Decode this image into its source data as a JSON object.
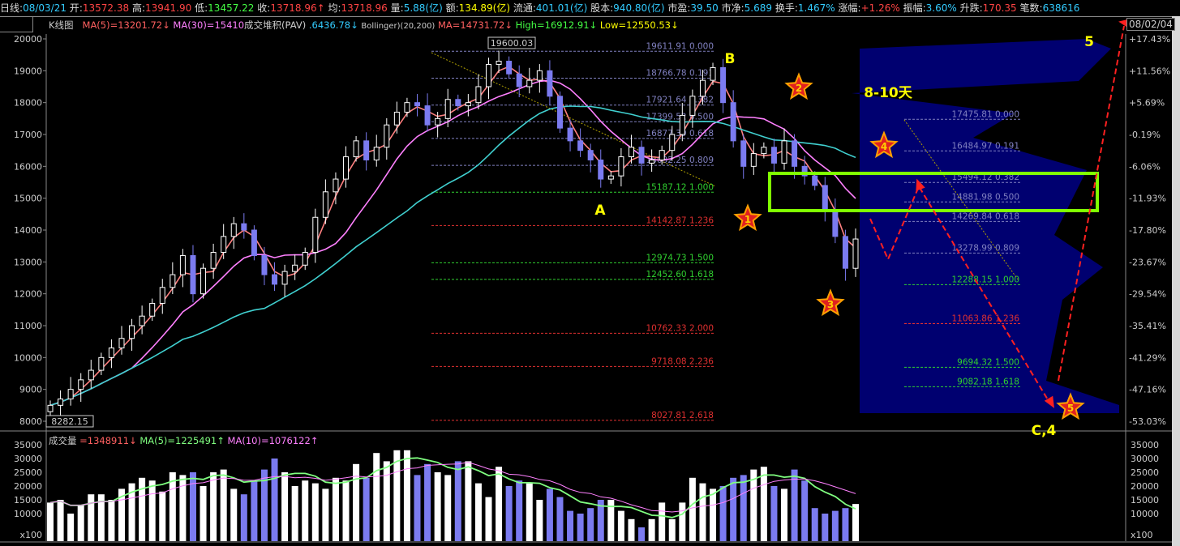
{
  "header": {
    "period_label": "日线",
    "date": "08/03/21",
    "open_label": "开",
    "open": "13572.38",
    "high_label": "高",
    "high": "13941.90",
    "low_label": "低",
    "low": "13457.22",
    "close_label": "收",
    "close": "13718.96↑",
    "avg_label": "均",
    "avg": "13718.96",
    "vol_label": "量",
    "vol": "5.88(亿)",
    "amount_label": "额",
    "amount": "134.89(亿)",
    "float_label": "流通",
    "float": "401.01(亿)",
    "shares_label": "股本",
    "shares": "940.80(亿)",
    "pe_label": "市盈",
    "pe": "39.50",
    "pb_label": "市净",
    "pb": "5.689",
    "turnover_label": "换手",
    "turnover": "1.467%",
    "change_label": "涨幅",
    "change": "+1.26%",
    "amplitude_label": "振幅",
    "amplitude": "3.60%",
    "updown_label": "升跌",
    "updown": "170.35",
    "trades_label": "笔数",
    "trades": "638616"
  },
  "legend": {
    "chart_name": "K线图",
    "ma5": "MA(5)=13201.72↓",
    "ma30": "MA(30)=15410",
    "pav": "成交堆积(PAV)",
    "pav_val": ".6436.78↓",
    "boll": "Bollinger)(20,200)",
    "boll_ma": "MA=14731.72↓",
    "boll_high": "High=16912.91↓",
    "boll_low": "Low=12550.53↓",
    "end_date": "08/02/04"
  },
  "volume_legend": {
    "name": "成交量",
    "val": "=1348911↓",
    "ma5": "MA(5)=1225491↑",
    "ma10": "MA(10)=1076122↑",
    "unit": "x100"
  },
  "colors": {
    "up": "#ffffff",
    "down": "#7b7bf0",
    "ma5": "#ff8080",
    "ma30": "#ff80ff",
    "ma_long": "#40d0d0",
    "vol_ma5": "#80ff80",
    "profile": "#000070",
    "box": "#80ff00",
    "arrow": "#ff2020"
  },
  "chart_data": {
    "type": "candlestick",
    "y_ticks": [
      8000,
      9000,
      10000,
      11000,
      12000,
      13000,
      14000,
      15000,
      16000,
      17000,
      18000,
      19000,
      20000
    ],
    "ylim": [
      8000,
      20000
    ],
    "pct_ticks": [
      "+17.43%",
      "+11.56%",
      "+5.69%",
      "-0.19%",
      "-6.06%",
      "-11.93%",
      "-17.80%",
      "-23.67%",
      "-29.54%",
      "-35.41%",
      "-41.29%",
      "-47.16%",
      "-53.03%"
    ],
    "closes": [
      8500,
      8700,
      9000,
      9300,
      9600,
      10000,
      10300,
      10600,
      11000,
      11300,
      11700,
      12200,
      12600,
      13200,
      12000,
      12800,
      13300,
      13800,
      14200,
      14000,
      13200,
      12600,
      12300,
      12700,
      12900,
      13300,
      14400,
      15200,
      15600,
      16300,
      16800,
      16200,
      16600,
      17300,
      17700,
      18000,
      17900,
      17300,
      17500,
      18100,
      17900,
      18000,
      18500,
      19200,
      19300,
      18900,
      18500,
      18700,
      19000,
      18200,
      17200,
      16800,
      16500,
      16200,
      15600,
      15700,
      16300,
      16600,
      16100,
      16200,
      16500,
      17000,
      17600,
      18200,
      18700,
      19100,
      18000,
      16800,
      16000,
      16400,
      16600,
      16100,
      16800,
      16000,
      15700,
      15400,
      14600,
      13800,
      12800,
      13719
    ],
    "volume_ticks": [
      10000,
      15000,
      20000,
      25000,
      30000,
      35000
    ],
    "volumes": [
      14000,
      15000,
      10000,
      13000,
      17000,
      17000,
      15000,
      19000,
      21000,
      23000,
      22000,
      18000,
      25000,
      24000,
      25000,
      20000,
      25000,
      26000,
      19000,
      17000,
      22000,
      26000,
      30000,
      25000,
      20000,
      22000,
      21000,
      19000,
      23000,
      22000,
      28000,
      23000,
      32000,
      29000,
      33000,
      33000,
      24000,
      28000,
      25000,
      24000,
      29000,
      29000,
      21000,
      16000,
      27000,
      20000,
      22000,
      21000,
      15000,
      19000,
      16000,
      11000,
      10000,
      12000,
      15000,
      15000,
      11000,
      8000,
      5000,
      8000,
      14000,
      8000,
      14000,
      23000,
      21000,
      19000,
      20000,
      23000,
      24000,
      26000,
      27000,
      20000,
      19000,
      26000,
      22000,
      12000,
      10000,
      11000,
      12000,
      13489
    ],
    "high_mark": "19600.03",
    "low_mark": "8282.15",
    "fib_a": [
      {
        "price": 19611.91,
        "ratio": "0.000"
      },
      {
        "price": 18766.78,
        "ratio": "0.191"
      },
      {
        "price": 17921.64,
        "ratio": "0.382"
      },
      {
        "price": 17399.52,
        "ratio": "0.500"
      },
      {
        "price": 16877.39,
        "ratio": "0.618"
      },
      {
        "price": 16032.25,
        "ratio": "0.809"
      },
      {
        "price": 15187.12,
        "ratio": "1.000"
      },
      {
        "price": 14142.87,
        "ratio": "1.236"
      },
      {
        "price": 12974.73,
        "ratio": "1.500"
      },
      {
        "price": 12452.6,
        "ratio": "1.618"
      },
      {
        "price": 10762.33,
        "ratio": "2.000"
      },
      {
        "price": 9718.08,
        "ratio": "2.236"
      },
      {
        "price": 8027.81,
        "ratio": "2.618"
      }
    ],
    "fib_b": [
      {
        "price": 17475.81,
        "ratio": "0.000"
      },
      {
        "price": 16484.97,
        "ratio": "0.191"
      },
      {
        "price": 15494.12,
        "ratio": "0.382"
      },
      {
        "price": 14881.98,
        "ratio": "0.500"
      },
      {
        "price": 14269.84,
        "ratio": "0.618"
      },
      {
        "price": 13278.99,
        "ratio": "0.809"
      },
      {
        "price": 12288.15,
        "ratio": "1.000"
      },
      {
        "price": 11063.86,
        "ratio": "1.236"
      },
      {
        "price": 9694.32,
        "ratio": "1.500"
      },
      {
        "price": 9082.18,
        "ratio": "1.618"
      }
    ],
    "annotations": {
      "a": "A",
      "b": "B",
      "days": "8-10天",
      "wave5": "5",
      "c4": "C,4",
      "stars": [
        "1",
        "2",
        "3",
        "4",
        "5"
      ]
    }
  }
}
